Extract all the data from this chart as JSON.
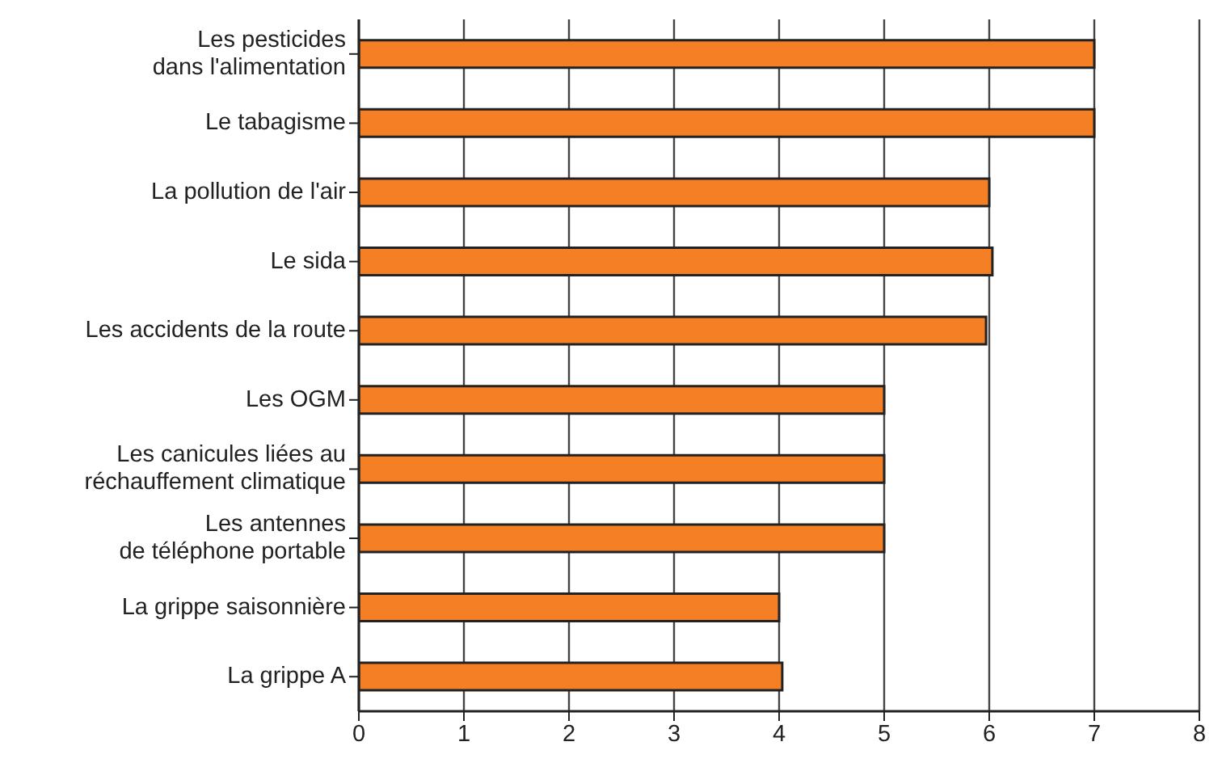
{
  "chart_data": {
    "type": "bar",
    "orientation": "horizontal",
    "categories": [
      "Les pesticides\ndans l'alimentation",
      "Le tabagisme",
      "La pollution de l'air",
      "Le sida",
      "Les accidents de la route",
      "Les OGM",
      "Les canicules liées au\nréchauffement climatique",
      "Les antennes\nde téléphone portable",
      "La grippe saisonnière",
      "La grippe A"
    ],
    "values": [
      7,
      7,
      6,
      6.03,
      5.97,
      5,
      5,
      5,
      4,
      4.03
    ],
    "color": "#f47f24",
    "xlim": [
      0,
      8
    ],
    "xticks": [
      0,
      1,
      2,
      3,
      4,
      5,
      6,
      7,
      8
    ],
    "grid": "x"
  }
}
